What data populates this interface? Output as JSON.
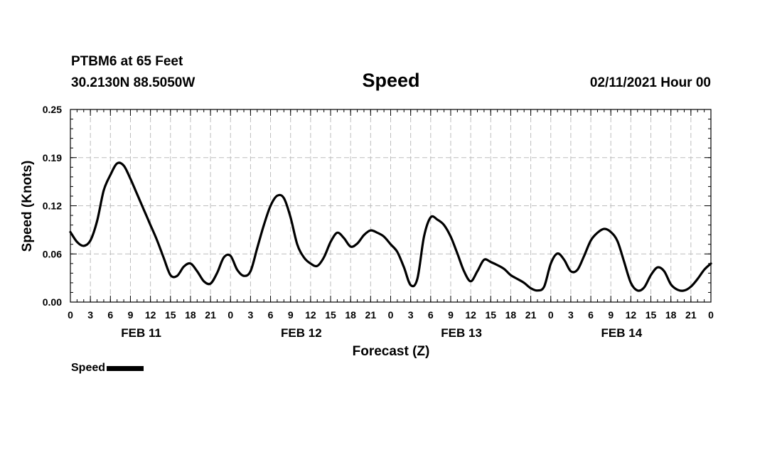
{
  "header": {
    "station": "PTBM6 at 65 Feet",
    "coords": "30.2130N 88.5050W",
    "title": "Speed",
    "run_time": "02/11/2021 Hour 00"
  },
  "chart_data": {
    "type": "line",
    "title": "Speed",
    "xlabel": "Forecast (Z)",
    "ylabel": "Speed (Knots)",
    "ylim": [
      0,
      0.25
    ],
    "y_ticks": [
      "0.00",
      "0.06",
      "0.12",
      "0.19",
      "0.25"
    ],
    "xlim_hours": [
      0,
      96
    ],
    "x_tick_labels": [
      "0",
      "3",
      "6",
      "9",
      "12",
      "15",
      "18",
      "21",
      "0",
      "3",
      "6",
      "9",
      "12",
      "15",
      "18",
      "21",
      "0",
      "3",
      "6",
      "9",
      "12",
      "15",
      "18",
      "21",
      "0",
      "3",
      "6",
      "9",
      "12",
      "15",
      "18",
      "21",
      "0"
    ],
    "day_labels": [
      "FEB 11",
      "FEB 12",
      "FEB 13",
      "FEB 14"
    ],
    "grid": true,
    "legend_position": "bottom-left",
    "series": [
      {
        "name": "Speed",
        "color": "#000000",
        "x": [
          0,
          1,
          2,
          3,
          4,
          5,
          6,
          7,
          8,
          9,
          10,
          11,
          12,
          13,
          14,
          15,
          16,
          17,
          18,
          19,
          20,
          21,
          22,
          23,
          24,
          25,
          26,
          27,
          28,
          29,
          30,
          31,
          32,
          33,
          34,
          35,
          36,
          37,
          38,
          39,
          40,
          41,
          42,
          43,
          44,
          45,
          46,
          47,
          48,
          49,
          50,
          51,
          52,
          53,
          54,
          55,
          56,
          57,
          58,
          59,
          60,
          61,
          62,
          63,
          64,
          65,
          66,
          67,
          68,
          69,
          70,
          71,
          72,
          73,
          74,
          75,
          76,
          77,
          78,
          79,
          80,
          81,
          82,
          83,
          84,
          85,
          86,
          87,
          88,
          89,
          90,
          91,
          92,
          93,
          94,
          95,
          96
        ],
        "values": [
          0.091,
          0.078,
          0.073,
          0.08,
          0.105,
          0.145,
          0.165,
          0.18,
          0.177,
          0.16,
          0.14,
          0.12,
          0.1,
          0.08,
          0.057,
          0.035,
          0.034,
          0.046,
          0.05,
          0.04,
          0.027,
          0.024,
          0.038,
          0.058,
          0.06,
          0.042,
          0.034,
          0.04,
          0.07,
          0.1,
          0.125,
          0.138,
          0.135,
          0.11,
          0.075,
          0.058,
          0.05,
          0.047,
          0.058,
          0.078,
          0.09,
          0.083,
          0.072,
          0.076,
          0.087,
          0.093,
          0.09,
          0.085,
          0.075,
          0.065,
          0.045,
          0.022,
          0.03,
          0.085,
          0.11,
          0.107,
          0.1,
          0.085,
          0.063,
          0.04,
          0.027,
          0.04,
          0.055,
          0.052,
          0.048,
          0.043,
          0.035,
          0.03,
          0.025,
          0.018,
          0.015,
          0.02,
          0.05,
          0.063,
          0.055,
          0.04,
          0.042,
          0.06,
          0.08,
          0.09,
          0.095,
          0.091,
          0.079,
          0.052,
          0.025,
          0.015,
          0.019,
          0.035,
          0.045,
          0.04,
          0.023,
          0.016,
          0.015,
          0.02,
          0.03,
          0.042,
          0.05
        ]
      }
    ]
  }
}
